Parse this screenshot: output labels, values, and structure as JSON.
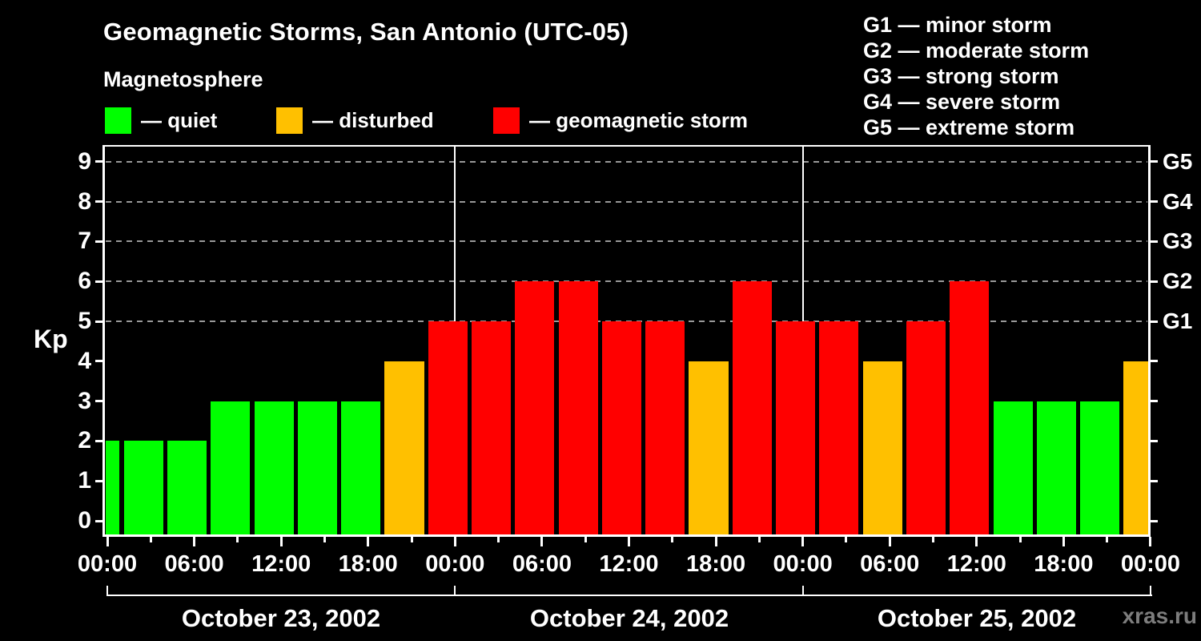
{
  "title": "Geomagnetic Storms, San Antonio (UTC-05)",
  "subtitle": "Magnetosphere",
  "watermark": "xras.ru",
  "colors": {
    "background": "#000000",
    "quiet": "#00ff00",
    "disturbed": "#ffc000",
    "storm": "#ff0000",
    "grid": "#999999",
    "frame": "#ffffff",
    "watermark": "#7d7d7d"
  },
  "legend": {
    "items": [
      {
        "key": "quiet",
        "label": "— quiet"
      },
      {
        "key": "disturbed",
        "label": "— disturbed"
      },
      {
        "key": "storm",
        "label": "— geomagnetic storm"
      }
    ]
  },
  "g_scale_legend": [
    "G1 — minor storm",
    "G2 — moderate storm",
    "G3 — strong storm",
    "G4 — severe storm",
    "G5 — extreme storm"
  ],
  "chart_data": {
    "type": "bar",
    "title": "Geomagnetic Storms, San Antonio (UTC-05)",
    "subtitle": "Magnetosphere",
    "ylabel": "Kp",
    "ylim": [
      0,
      9
    ],
    "y_ticks": [
      0,
      1,
      2,
      3,
      4,
      5,
      6,
      7,
      8,
      9
    ],
    "gridline_kp": [
      5,
      6,
      7,
      8,
      9
    ],
    "right_axis_labels": [
      {
        "kp": 5,
        "label": "G1"
      },
      {
        "kp": 6,
        "label": "G2"
      },
      {
        "kp": 7,
        "label": "G3"
      },
      {
        "kp": 8,
        "label": "G4"
      },
      {
        "kp": 9,
        "label": "G5"
      }
    ],
    "x_hours_range": [
      0,
      72
    ],
    "minor_tick_step_hours": 3,
    "x_ticks": [
      {
        "hour": 0,
        "label": "00:00"
      },
      {
        "hour": 6,
        "label": "06:00"
      },
      {
        "hour": 12,
        "label": "12:00"
      },
      {
        "hour": 18,
        "label": "18:00"
      },
      {
        "hour": 24,
        "label": "00:00"
      },
      {
        "hour": 30,
        "label": "06:00"
      },
      {
        "hour": 36,
        "label": "12:00"
      },
      {
        "hour": 42,
        "label": "18:00"
      },
      {
        "hour": 48,
        "label": "00:00"
      },
      {
        "hour": 54,
        "label": "06:00"
      },
      {
        "hour": 60,
        "label": "12:00"
      },
      {
        "hour": 66,
        "label": "18:00"
      },
      {
        "hour": 72,
        "label": "00:00"
      }
    ],
    "day_boundaries_hours": [
      24,
      48
    ],
    "dates": [
      "October 23, 2002",
      "October 24, 2002",
      "October 25, 2002"
    ],
    "bars_note": "hours relative to October 23, 2002 00:00 local (UTC-05); 3-hour Kp intervals",
    "bars": [
      {
        "start_hour": -2,
        "end_hour": 1,
        "kp": 2,
        "condition": "quiet"
      },
      {
        "start_hour": 1,
        "end_hour": 4,
        "kp": 2,
        "condition": "quiet"
      },
      {
        "start_hour": 4,
        "end_hour": 7,
        "kp": 2,
        "condition": "quiet"
      },
      {
        "start_hour": 7,
        "end_hour": 10,
        "kp": 3,
        "condition": "quiet"
      },
      {
        "start_hour": 10,
        "end_hour": 13,
        "kp": 3,
        "condition": "quiet"
      },
      {
        "start_hour": 13,
        "end_hour": 16,
        "kp": 3,
        "condition": "quiet"
      },
      {
        "start_hour": 16,
        "end_hour": 19,
        "kp": 3,
        "condition": "quiet"
      },
      {
        "start_hour": 19,
        "end_hour": 22,
        "kp": 4,
        "condition": "disturbed"
      },
      {
        "start_hour": 22,
        "end_hour": 25,
        "kp": 5,
        "condition": "storm"
      },
      {
        "start_hour": 25,
        "end_hour": 28,
        "kp": 5,
        "condition": "storm"
      },
      {
        "start_hour": 28,
        "end_hour": 31,
        "kp": 6,
        "condition": "storm"
      },
      {
        "start_hour": 31,
        "end_hour": 34,
        "kp": 6,
        "condition": "storm"
      },
      {
        "start_hour": 34,
        "end_hour": 37,
        "kp": 5,
        "condition": "storm"
      },
      {
        "start_hour": 37,
        "end_hour": 40,
        "kp": 5,
        "condition": "storm"
      },
      {
        "start_hour": 40,
        "end_hour": 43,
        "kp": 4,
        "condition": "disturbed"
      },
      {
        "start_hour": 43,
        "end_hour": 46,
        "kp": 6,
        "condition": "storm"
      },
      {
        "start_hour": 46,
        "end_hour": 49,
        "kp": 5,
        "condition": "storm"
      },
      {
        "start_hour": 49,
        "end_hour": 52,
        "kp": 5,
        "condition": "storm"
      },
      {
        "start_hour": 52,
        "end_hour": 55,
        "kp": 4,
        "condition": "disturbed"
      },
      {
        "start_hour": 55,
        "end_hour": 58,
        "kp": 5,
        "condition": "storm"
      },
      {
        "start_hour": 58,
        "end_hour": 61,
        "kp": 6,
        "condition": "storm"
      },
      {
        "start_hour": 61,
        "end_hour": 64,
        "kp": 3,
        "condition": "quiet"
      },
      {
        "start_hour": 64,
        "end_hour": 67,
        "kp": 3,
        "condition": "quiet"
      },
      {
        "start_hour": 67,
        "end_hour": 70,
        "kp": 3,
        "condition": "quiet"
      },
      {
        "start_hour": 70,
        "end_hour": 73,
        "kp": 4,
        "condition": "disturbed"
      }
    ]
  }
}
